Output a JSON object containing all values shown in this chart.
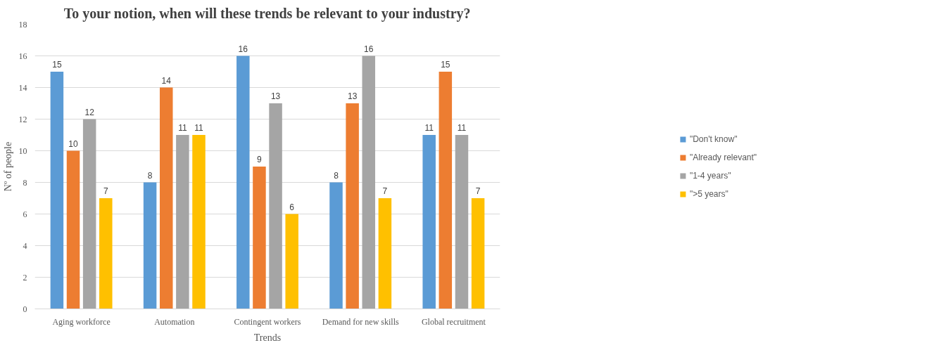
{
  "chart_data": {
    "type": "bar",
    "title": "To your notion, when will these trends be relevant to your industry?",
    "xlabel": "Trends",
    "ylabel": "Nº of people",
    "categories": [
      "Aging workforce",
      "Automation",
      "Contingent workers",
      "Demand for new skills",
      "Global recruitment"
    ],
    "series": [
      {
        "name": "\"Don't know\"",
        "color": "#5b9bd5",
        "values": [
          15,
          8,
          16,
          8,
          11
        ]
      },
      {
        "name": "\"Already relevant\"",
        "color": "#ed7d31",
        "values": [
          10,
          14,
          9,
          13,
          15
        ]
      },
      {
        "name": "\"1-4 years\"",
        "color": "#a5a5a5",
        "values": [
          12,
          11,
          13,
          16,
          11
        ]
      },
      {
        "name": "\">5 years\"",
        "color": "#ffc000",
        "values": [
          7,
          11,
          6,
          7,
          7
        ]
      }
    ],
    "ylim": [
      0,
      18
    ],
    "yticks": [
      0,
      2,
      4,
      6,
      8,
      10,
      12,
      14,
      16,
      18
    ],
    "grid": "y",
    "legend": "right",
    "data_labels": true
  }
}
